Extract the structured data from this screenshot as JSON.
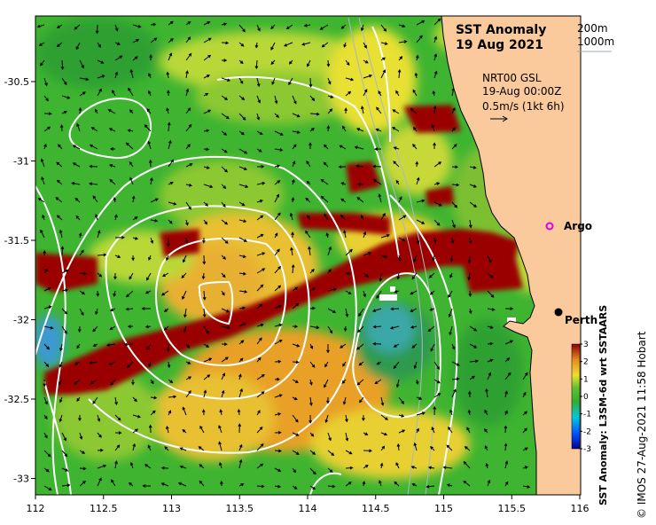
{
  "title": {
    "line1": "SST Anomaly",
    "line2": "19 Aug 2021"
  },
  "depth_legend": [
    "200m",
    "1000m"
  ],
  "current_info": {
    "product": "NRT00 GSL",
    "time": "19-Aug 00:00Z",
    "scale": "0.5m/s (1kt 6h)"
  },
  "places": [
    {
      "name": "Argo",
      "lon": 115.85,
      "lat": -31.46,
      "marker": "magenta-circle"
    },
    {
      "name": "Perth",
      "lon": 115.86,
      "lat": -31.95,
      "marker": "black-dot"
    }
  ],
  "axes": {
    "lon_ticks": [
      "112",
      "112.5",
      "113",
      "113.5",
      "114",
      "114.5",
      "115",
      "115.5",
      "116"
    ],
    "lat_ticks": [
      "-30.5",
      "-31",
      "-31.5",
      "-32",
      "-32.5",
      "-33"
    ],
    "lon_range": [
      112,
      116
    ],
    "lat_range": [
      -33.1,
      -30.1
    ]
  },
  "colorbar": {
    "label": "SST Anomaly: L3SM-6d wrt SSTAARS",
    "ticks": [
      "3",
      "2",
      "1",
      "0",
      "-1",
      "-2",
      "-3"
    ]
  },
  "credit": "© IMOS 27-Aug-2021 11:58 Hobart",
  "colors": {
    "land": "#FAC99C",
    "hot": "#9B0000",
    "warm_orange": "#E89A22",
    "yellow": "#E8E030",
    "green": "#3EB430",
    "cyan": "#3AA8A8"
  }
}
